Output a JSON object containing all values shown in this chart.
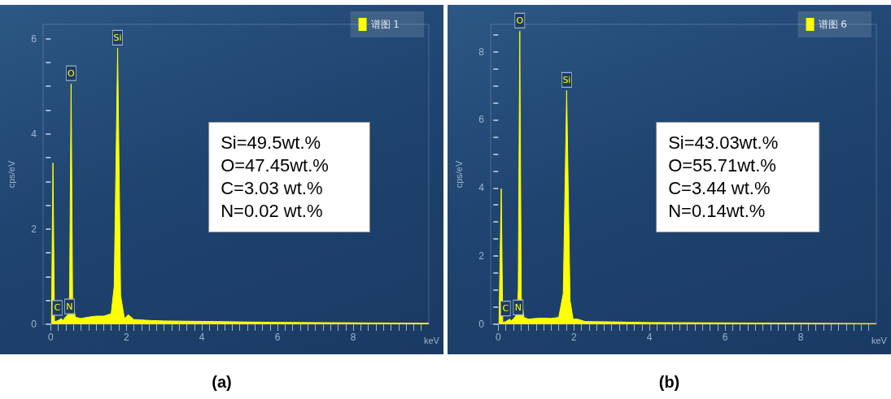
{
  "chart_data": [
    {
      "type": "area",
      "title": "(a)",
      "xlabel": "keV",
      "ylabel": "cps/eV",
      "legend": "top right",
      "marker": "none",
      "grid": false,
      "xlim": [
        -0.2,
        10
      ],
      "ylim": [
        0,
        6.3
      ],
      "xticks": [
        0,
        {
          "value": 0.2,
          "label": null
        },
        {
          "value": 0.4,
          "label": null
        },
        {
          "value": 0.6,
          "label": null
        },
        {
          "value": 0.8,
          "label": null
        },
        {
          "value": 1,
          "label": null
        },
        {
          "value": 1.2,
          "label": null
        },
        {
          "value": 1.4,
          "label": null
        },
        {
          "value": 1.6,
          "label": null
        },
        {
          "value": 1.8,
          "label": null
        },
        2,
        {
          "value": 2.2,
          "label": null
        },
        {
          "value": 2.4,
          "label": null
        },
        {
          "value": 2.6,
          "label": null
        },
        {
          "value": 2.8,
          "label": null
        },
        {
          "value": 3,
          "label": null
        },
        {
          "value": 3.2,
          "label": null
        },
        {
          "value": 3.4,
          "label": null
        },
        {
          "value": 3.6,
          "label": null
        },
        {
          "value": 3.8,
          "label": null
        },
        4,
        {
          "value": 4.2,
          "label": null
        },
        {
          "value": 4.4,
          "label": null
        },
        {
          "value": 4.6,
          "label": null
        },
        {
          "value": 4.8,
          "label": null
        },
        {
          "value": 5,
          "label": null
        },
        {
          "value": 5.2,
          "label": null
        },
        {
          "value": 5.4,
          "label": null
        },
        {
          "value": 5.6,
          "label": null
        },
        {
          "value": 5.8,
          "label": null
        },
        6,
        {
          "value": 6.2,
          "label": null
        },
        {
          "value": 6.4,
          "label": null
        },
        {
          "value": 6.6,
          "label": null
        },
        {
          "value": 6.8,
          "label": null
        },
        {
          "value": 7,
          "label": null
        },
        {
          "value": 7.2,
          "label": null
        },
        {
          "value": 7.4,
          "label": null
        },
        {
          "value": 7.6,
          "label": null
        },
        {
          "value": 7.8,
          "label": null
        },
        8,
        {
          "value": 8.2,
          "label": null
        },
        {
          "value": 8.4,
          "label": null
        },
        {
          "value": 8.6,
          "label": null
        },
        {
          "value": 8.8,
          "label": null
        },
        {
          "value": 9,
          "label": null
        },
        {
          "value": 9.2,
          "label": null
        },
        {
          "value": 9.4,
          "label": null
        },
        {
          "value": 9.6,
          "label": null
        },
        {
          "value": 9.8,
          "label": null
        }
      ],
      "yticks": [
        0,
        {
          "value": 0.5,
          "label": null
        },
        {
          "value": 1,
          "label": null
        },
        {
          "value": 1.5,
          "label": null
        },
        2,
        {
          "value": 2.5,
          "label": null
        },
        {
          "value": 3,
          "label": null
        },
        {
          "value": 3.5,
          "label": null
        },
        4,
        {
          "value": 4.5,
          "label": null
        },
        {
          "value": 5,
          "label": null
        },
        {
          "value": 5.5,
          "label": null
        },
        6
      ],
      "series": [
        {
          "name": "谱图 1",
          "color": "#ffff00",
          "x": [
            0.02,
            0.06,
            0.1,
            0.2,
            0.28,
            0.33,
            0.39,
            0.45,
            0.5,
            0.54,
            0.58,
            0.65,
            0.8,
            1.0,
            1.2,
            1.4,
            1.6,
            1.68,
            1.77,
            1.85,
            1.95,
            2.05,
            2.2,
            2.6,
            3,
            4,
            5,
            6,
            8,
            10
          ],
          "values": [
            0,
            3.39,
            0.05,
            0.08,
            0.12,
            0.08,
            0.15,
            0.2,
            0.6,
            5.05,
            0.5,
            0.15,
            0.12,
            0.15,
            0.17,
            0.17,
            0.22,
            0.8,
            5.8,
            0.6,
            0.12,
            0.2,
            0.1,
            0.08,
            0.07,
            0.06,
            0.05,
            0.04,
            0.03,
            0.02
          ]
        }
      ],
      "annotations": [
        {
          "text": "O",
          "x": 0.54,
          "y": 5.05
        },
        {
          "text": "Si",
          "x": 1.77,
          "y": 5.8
        },
        {
          "text": "C",
          "x": 0.28,
          "y": 0.12
        },
        {
          "text": "N",
          "x": 0.39,
          "y": 0.15
        },
        "Si=49.5wt.%",
        "O=47.45wt.%",
        "C=3.03 wt.%",
        "N=0.02 wt.%"
      ]
    },
    {
      "type": "area",
      "title": "(b)",
      "xlabel": "keV",
      "ylabel": "cps/eV",
      "legend": "top right",
      "marker": "none",
      "grid": false,
      "xlim": [
        -0.2,
        10
      ],
      "ylim": [
        0,
        8.8
      ],
      "xticks": [
        0,
        {
          "value": 0.2,
          "label": null
        },
        {
          "value": 0.4,
          "label": null
        },
        {
          "value": 0.6,
          "label": null
        },
        {
          "value": 0.8,
          "label": null
        },
        {
          "value": 1,
          "label": null
        },
        {
          "value": 1.2,
          "label": null
        },
        {
          "value": 1.4,
          "label": null
        },
        {
          "value": 1.6,
          "label": null
        },
        {
          "value": 1.8,
          "label": null
        },
        2,
        {
          "value": 2.2,
          "label": null
        },
        {
          "value": 2.4,
          "label": null
        },
        {
          "value": 2.6,
          "label": null
        },
        {
          "value": 2.8,
          "label": null
        },
        {
          "value": 3,
          "label": null
        },
        {
          "value": 3.2,
          "label": null
        },
        {
          "value": 3.4,
          "label": null
        },
        {
          "value": 3.6,
          "label": null
        },
        {
          "value": 3.8,
          "label": null
        },
        4,
        {
          "value": 4.2,
          "label": null
        },
        {
          "value": 4.4,
          "label": null
        },
        {
          "value": 4.6,
          "label": null
        },
        {
          "value": 4.8,
          "label": null
        },
        {
          "value": 5,
          "label": null
        },
        {
          "value": 5.2,
          "label": null
        },
        {
          "value": 5.4,
          "label": null
        },
        {
          "value": 5.6,
          "label": null
        },
        {
          "value": 5.8,
          "label": null
        },
        6,
        {
          "value": 6.2,
          "label": null
        },
        {
          "value": 6.4,
          "label": null
        },
        {
          "value": 6.6,
          "label": null
        },
        {
          "value": 6.8,
          "label": null
        },
        {
          "value": 7,
          "label": null
        },
        {
          "value": 7.2,
          "label": null
        },
        {
          "value": 7.4,
          "label": null
        },
        {
          "value": 7.6,
          "label": null
        },
        {
          "value": 7.8,
          "label": null
        },
        8,
        {
          "value": 8.2,
          "label": null
        },
        {
          "value": 8.4,
          "label": null
        },
        {
          "value": 8.6,
          "label": null
        },
        {
          "value": 8.8,
          "label": null
        },
        {
          "value": 9,
          "label": null
        },
        {
          "value": 9.2,
          "label": null
        },
        {
          "value": 9.4,
          "label": null
        },
        {
          "value": 9.6,
          "label": null
        },
        {
          "value": 9.8,
          "label": null
        }
      ],
      "yticks": [
        0,
        {
          "value": 0.5,
          "label": null
        },
        {
          "value": 1,
          "label": null
        },
        {
          "value": 1.5,
          "label": null
        },
        2,
        {
          "value": 2.5,
          "label": null
        },
        {
          "value": 3,
          "label": null
        },
        {
          "value": 3.5,
          "label": null
        },
        4,
        {
          "value": 4.5,
          "label": null
        },
        {
          "value": 5,
          "label": null
        },
        {
          "value": 5.5,
          "label": null
        },
        6,
        {
          "value": 6.5,
          "label": null
        },
        {
          "value": 7,
          "label": null
        },
        {
          "value": 7.5,
          "label": null
        },
        8,
        {
          "value": 8.5,
          "label": null
        }
      ],
      "series": [
        {
          "name": "谱图 6",
          "color": "#ffff00",
          "x": [
            0.02,
            0.08,
            0.12,
            0.2,
            0.3,
            0.35,
            0.42,
            0.5,
            0.53,
            0.57,
            0.61,
            0.68,
            0.8,
            1.0,
            1.2,
            1.4,
            1.6,
            1.72,
            1.81,
            1.9,
            1.98,
            2.1,
            2.3,
            3,
            4,
            6,
            8,
            10
          ],
          "values": [
            0,
            3.98,
            0.05,
            0.08,
            0.15,
            0.1,
            0.18,
            0.3,
            1.0,
            8.6,
            0.8,
            0.2,
            0.15,
            0.17,
            0.18,
            0.17,
            0.2,
            0.9,
            6.86,
            0.7,
            0.15,
            0.15,
            0.08,
            0.07,
            0.05,
            0.04,
            0.03,
            0.02
          ]
        }
      ],
      "annotations": [
        {
          "text": "O",
          "x": 0.57,
          "y": 8.6
        },
        {
          "text": "Si",
          "x": 1.81,
          "y": 6.86
        },
        {
          "text": "C",
          "x": 0.3,
          "y": 0.15
        },
        {
          "text": "N",
          "x": 0.42,
          "y": 0.18
        },
        "Si=43.03wt.%",
        "O=55.71wt.%",
        "C=3.44 wt.%",
        "N=0.14wt.%"
      ]
    }
  ]
}
